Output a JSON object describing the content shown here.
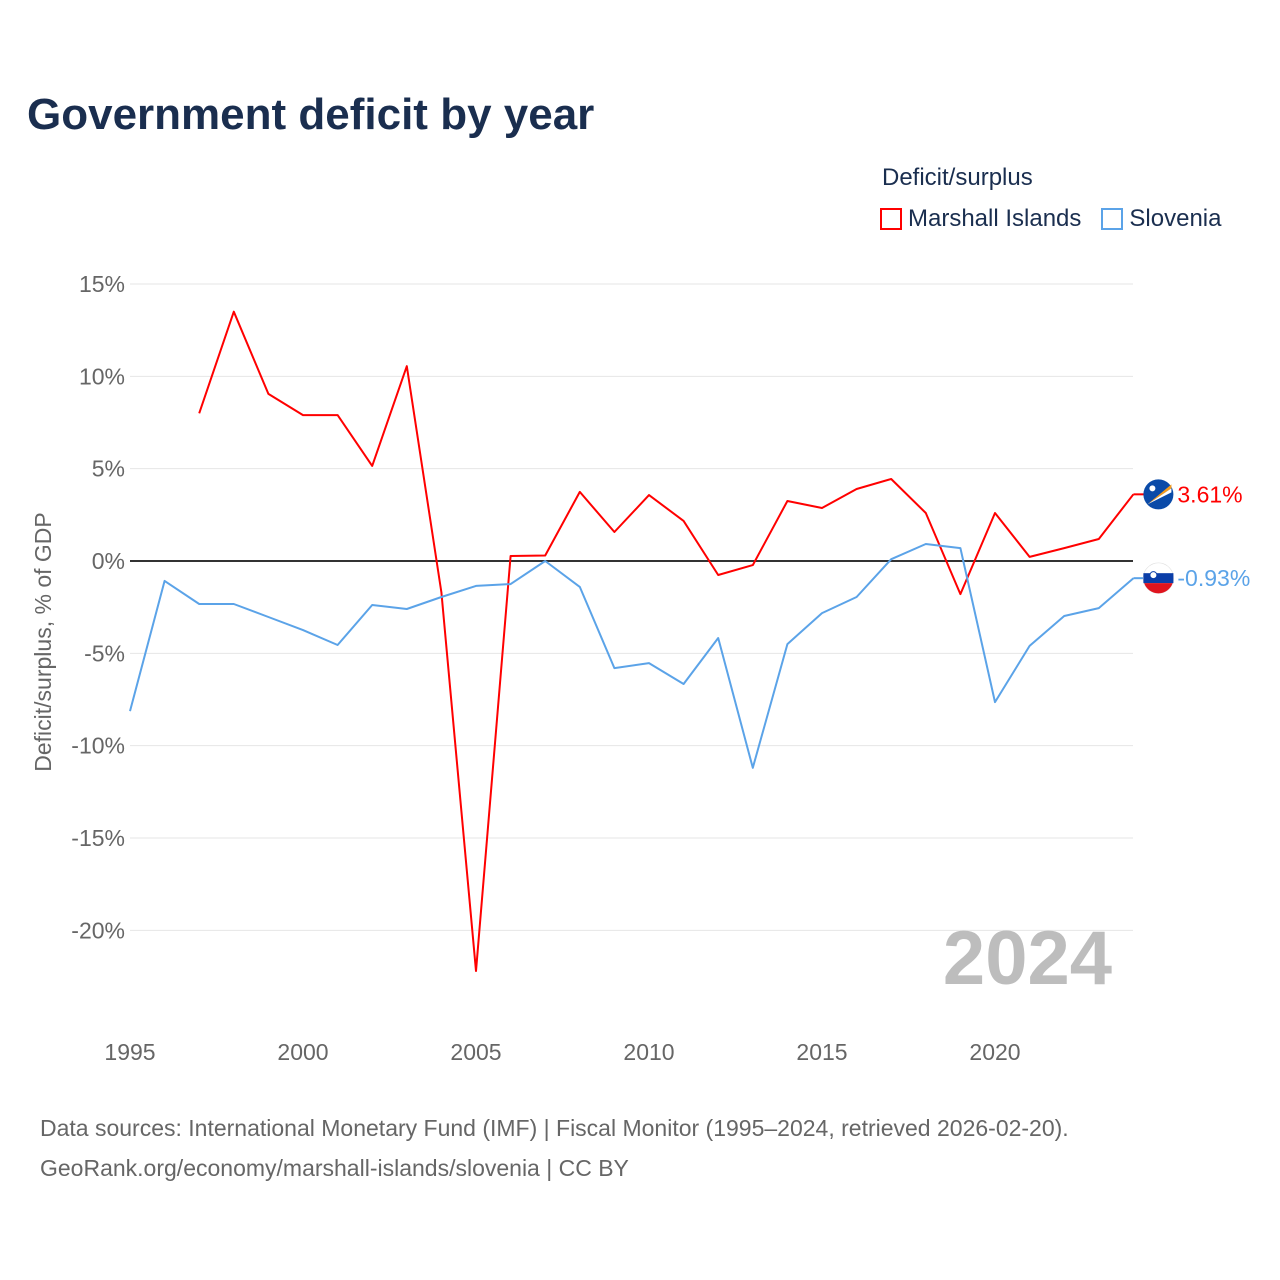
{
  "title": "Government deficit by year",
  "legend": {
    "title": "Deficit/surplus",
    "items": [
      {
        "label": "Marshall Islands",
        "color": "#ff0000"
      },
      {
        "label": "Slovenia",
        "color": "#5ba3e8"
      }
    ]
  },
  "watermark_year": "2024",
  "source_line1": "Data sources: International Monetary Fund (IMF) | Fiscal Monitor (1995–2024, retrieved 2026-02-20).",
  "source_line2": "GeoRank.org/economy/marshall-islands/slovenia | CC BY",
  "chart_data": {
    "type": "line",
    "title": "Government deficit by year",
    "xlabel": "",
    "ylabel": "Deficit/surplus, % of GDP",
    "xlim": [
      1995,
      2024
    ],
    "ylim": [
      -22.5,
      15
    ],
    "xticks": [
      1995,
      2000,
      2005,
      2010,
      2015,
      2020
    ],
    "yticks": [
      15,
      10,
      5,
      0,
      -5,
      -10,
      -15,
      -20
    ],
    "ytick_labels": [
      "15%",
      "10%",
      "5%",
      "0%",
      "-5%",
      "-10%",
      "-15%",
      "-20%"
    ],
    "legend_position": "top-right",
    "grid": true,
    "series": [
      {
        "name": "Marshall Islands",
        "color": "#ff0000",
        "end_label": "3.61%",
        "x": [
          1997,
          1998,
          1999,
          2000,
          2001,
          2002,
          2003,
          2004,
          2005,
          2006,
          2007,
          2008,
          2009,
          2010,
          2011,
          2012,
          2013,
          2014,
          2015,
          2016,
          2017,
          2018,
          2019,
          2020,
          2021,
          2022,
          2023,
          2024
        ],
        "values": [
          8.0,
          13.5,
          9.05,
          7.9,
          7.9,
          5.15,
          10.55,
          -1.7,
          -22.2,
          0.27,
          0.3,
          3.74,
          1.57,
          3.57,
          2.17,
          -0.76,
          -0.22,
          3.25,
          2.87,
          3.9,
          4.44,
          2.6,
          -1.79,
          2.6,
          0.22,
          0.7,
          1.19,
          3.61
        ]
      },
      {
        "name": "Slovenia",
        "color": "#5ba3e8",
        "end_label": "-0.93%",
        "x": [
          1995,
          1996,
          1997,
          1998,
          1999,
          2000,
          2001,
          2002,
          2003,
          2004,
          2005,
          2006,
          2007,
          2008,
          2009,
          2010,
          2011,
          2012,
          2013,
          2014,
          2015,
          2016,
          2017,
          2018,
          2019,
          2020,
          2021,
          2022,
          2023,
          2024
        ],
        "values": [
          -8.13,
          -1.08,
          -2.33,
          -2.33,
          -3.03,
          -3.74,
          -4.55,
          -2.38,
          -2.6,
          -1.95,
          -1.35,
          -1.25,
          0.0,
          -1.4,
          -5.8,
          -5.53,
          -6.66,
          -4.17,
          -11.2,
          -4.5,
          -2.82,
          -1.95,
          0.1,
          0.92,
          0.7,
          -7.64,
          -4.6,
          -2.98,
          -2.55,
          -0.93
        ]
      }
    ]
  }
}
